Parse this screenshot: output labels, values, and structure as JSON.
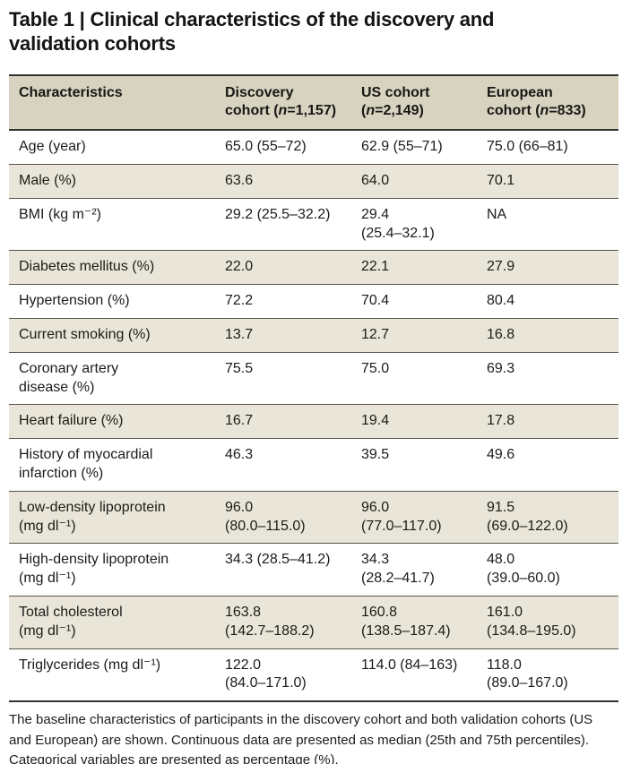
{
  "title": "Table 1 | Clinical characteristics of the discovery and\nvalidation cohorts",
  "colors": {
    "header_bg": "#d8d3c0",
    "shaded_row_bg": "#e9e5d8",
    "border_heavy": "#33322c",
    "border_light": "#56554b",
    "text": "#1b1b18"
  },
  "table": {
    "columns": [
      {
        "label": "Characteristics"
      },
      {
        "before": "Discovery\ncohort (",
        "n": "n",
        "after": "=1,157)"
      },
      {
        "before": "US cohort\n(",
        "n": "n",
        "after": "=2,149)"
      },
      {
        "before": "European\ncohort (",
        "n": "n",
        "after": "=833)"
      }
    ],
    "rows": [
      {
        "label": "Age (year)",
        "values": [
          "65.0 (55–72)",
          "62.9 (55–71)",
          "75.0 (66–81)"
        ]
      },
      {
        "label": "Male (%)",
        "values": [
          "63.6",
          "64.0",
          "70.1"
        ]
      },
      {
        "label": "BMI (kg m⁻²)",
        "values": [
          "29.2 (25.5–32.2)",
          "29.4\n(25.4–32.1)",
          "NA"
        ]
      },
      {
        "label": "Diabetes mellitus (%)",
        "values": [
          "22.0",
          "22.1",
          "27.9"
        ]
      },
      {
        "label": "Hypertension (%)",
        "values": [
          "72.2",
          "70.4",
          "80.4"
        ]
      },
      {
        "label": "Current smoking (%)",
        "values": [
          "13.7",
          "12.7",
          "16.8"
        ]
      },
      {
        "label": "Coronary artery\ndisease (%)",
        "values": [
          "75.5",
          "75.0",
          "69.3"
        ]
      },
      {
        "label": "Heart failure (%)",
        "values": [
          "16.7",
          "19.4",
          "17.8"
        ]
      },
      {
        "label": "History of myocardial\ninfarction (%)",
        "values": [
          "46.3",
          "39.5",
          "49.6"
        ]
      },
      {
        "label": "Low-density lipoprotein\n(mg dl⁻¹)",
        "values": [
          "96.0\n(80.0–115.0)",
          "96.0\n(77.0–117.0)",
          "91.5\n(69.0–122.0)"
        ]
      },
      {
        "label": "High-density lipoprotein\n(mg dl⁻¹)",
        "values": [
          "34.3 (28.5–41.2)",
          "34.3\n(28.2–41.7)",
          "48.0\n(39.0–60.0)"
        ]
      },
      {
        "label": "Total cholesterol\n(mg dl⁻¹)",
        "values": [
          "163.8\n(142.7–188.2)",
          "160.8\n(138.5–187.4)",
          "161.0\n(134.8–195.0)"
        ]
      },
      {
        "label": "Triglycerides (mg dl⁻¹)",
        "values": [
          "122.0\n(84.0–171.0)",
          "114.0 (84–163)",
          "118.0\n(89.0–167.0)"
        ]
      }
    ]
  },
  "footnote": "The baseline characteristics of participants in the discovery cohort and both validation cohorts (US and European) are shown. Continuous data are presented as median (25th and 75th percentiles). Categorical variables are presented as percentage (%)."
}
